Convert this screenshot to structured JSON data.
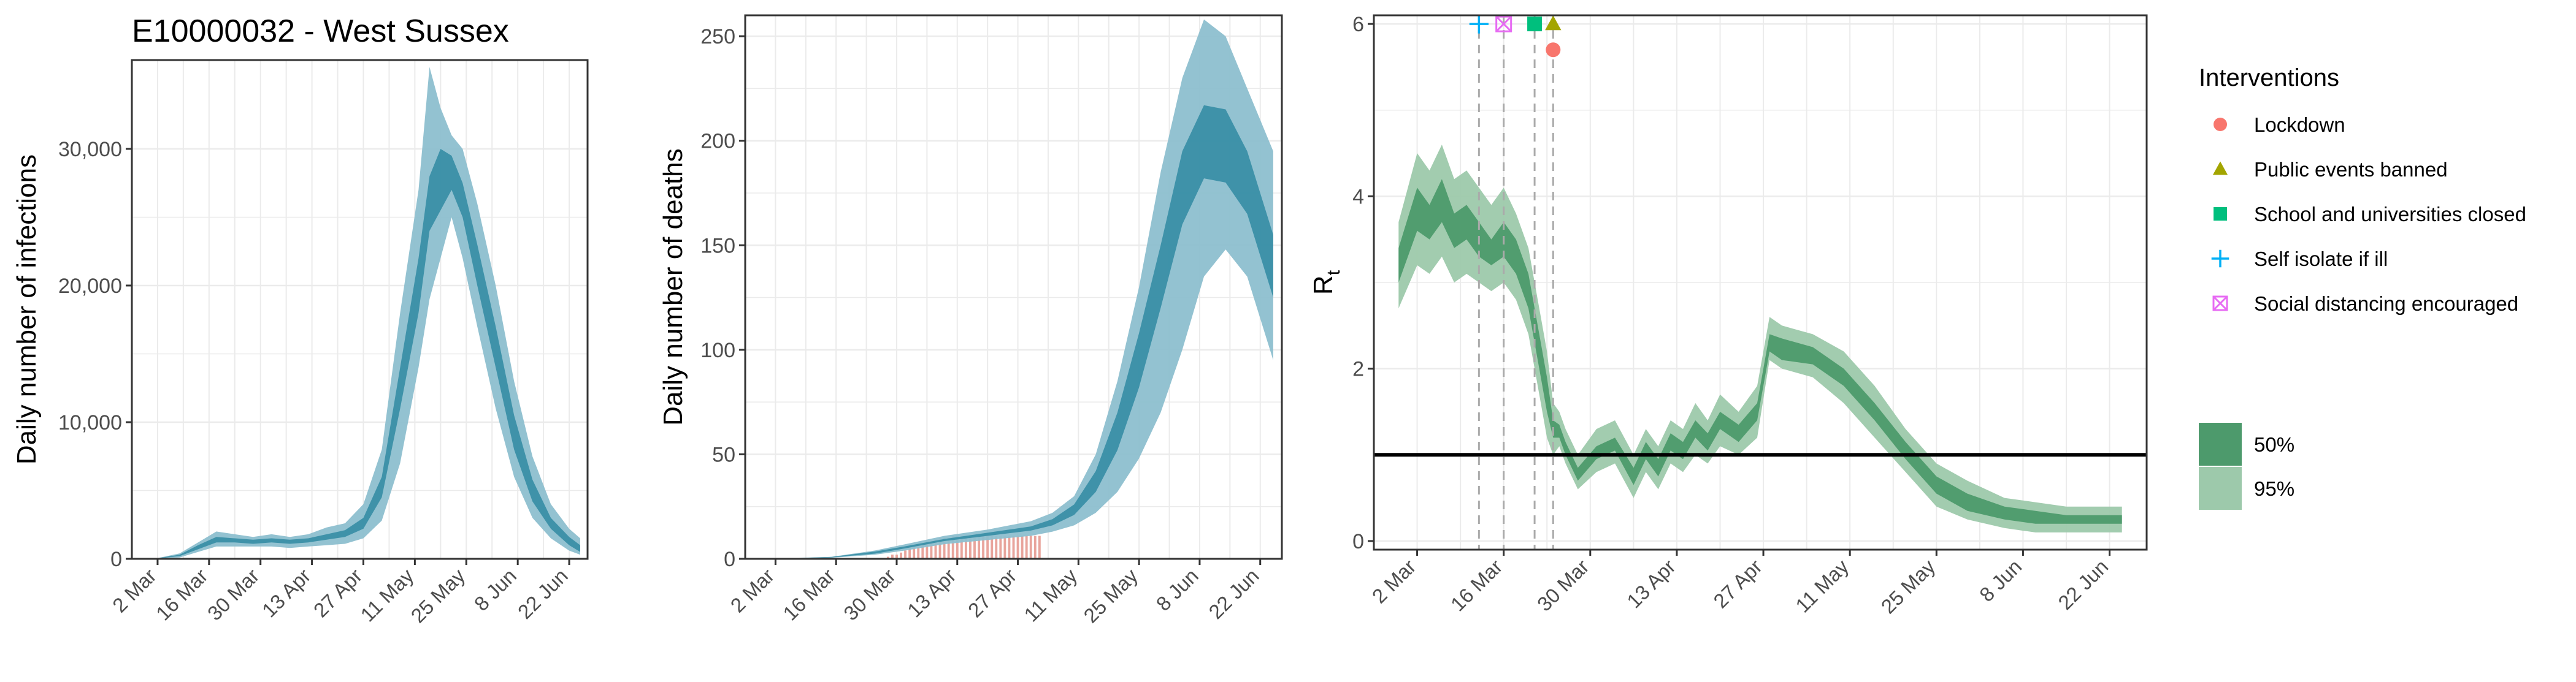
{
  "title": "E10000032 - West Sussex",
  "colors": {
    "infection_dark": "#3a8fa7",
    "infection_light": "#8dbfcf",
    "rt_dark": "#4d9a6c",
    "rt_light": "#9dc9ab",
    "bars": "#e8a49c",
    "grid": "#ebebeb",
    "lockdown": "#f8766d",
    "public_events": "#a3a500",
    "school": "#00bf7d",
    "self_isolate": "#00b0f6",
    "social_distancing": "#e76bf3"
  },
  "chart_data": [
    {
      "type": "area",
      "ylabel": "Daily number of infections",
      "ylim": [
        0,
        36500
      ],
      "xlim": [
        "2020-02-24",
        "2020-06-27"
      ],
      "x_ticks": [
        "2 Mar",
        "16 Mar",
        "30 Mar",
        "13 Apr",
        "27 Apr",
        "11 May",
        "25 May",
        "8 Jun",
        "22 Jun"
      ],
      "x_tick_dates": [
        "2020-03-02",
        "2020-03-16",
        "2020-03-30",
        "2020-04-13",
        "2020-04-27",
        "2020-05-11",
        "2020-05-25",
        "2020-06-08",
        "2020-06-22"
      ],
      "y_ticks": [
        0,
        10000,
        20000,
        30000
      ],
      "y_tick_labels": [
        "0",
        "10,000",
        "20,000",
        "30,000"
      ],
      "series": [
        {
          "band": "95%",
          "x": [
            "2020-03-01",
            "2020-03-08",
            "2020-03-13",
            "2020-03-18",
            "2020-03-23",
            "2020-03-28",
            "2020-04-02",
            "2020-04-07",
            "2020-04-12",
            "2020-04-17",
            "2020-04-22",
            "2020-04-27",
            "2020-05-02",
            "2020-05-07",
            "2020-05-12",
            "2020-05-15",
            "2020-05-18",
            "2020-05-21",
            "2020-05-24",
            "2020-05-28",
            "2020-06-02",
            "2020-06-07",
            "2020-06-12",
            "2020-06-17",
            "2020-06-22",
            "2020-06-25"
          ],
          "low": [
            0,
            100,
            500,
            900,
            900,
            900,
            900,
            800,
            900,
            1000,
            1100,
            1500,
            2800,
            7000,
            14000,
            19000,
            22000,
            25000,
            22000,
            17000,
            11000,
            6000,
            3000,
            1500,
            600,
            300
          ],
          "high": [
            0,
            400,
            1200,
            2000,
            1800,
            1600,
            1800,
            1600,
            1800,
            2300,
            2600,
            4000,
            8000,
            18000,
            27000,
            36000,
            33000,
            31000,
            30000,
            26000,
            20000,
            13000,
            7500,
            4000,
            2200,
            1500
          ]
        },
        {
          "band": "50%",
          "x": [
            "2020-03-01",
            "2020-03-08",
            "2020-03-13",
            "2020-03-18",
            "2020-03-23",
            "2020-03-28",
            "2020-04-02",
            "2020-04-07",
            "2020-04-12",
            "2020-04-17",
            "2020-04-22",
            "2020-04-27",
            "2020-05-02",
            "2020-05-07",
            "2020-05-12",
            "2020-05-15",
            "2020-05-18",
            "2020-05-21",
            "2020-05-24",
            "2020-05-28",
            "2020-06-02",
            "2020-06-07",
            "2020-06-12",
            "2020-06-17",
            "2020-06-22",
            "2020-06-25"
          ],
          "low": [
            0,
            200,
            700,
            1200,
            1200,
            1100,
            1200,
            1100,
            1200,
            1400,
            1600,
            2200,
            4500,
            11000,
            18000,
            24000,
            25500,
            27000,
            25000,
            20000,
            14000,
            8000,
            4200,
            2200,
            1000,
            500
          ],
          "high": [
            0,
            300,
            1000,
            1600,
            1500,
            1400,
            1500,
            1400,
            1500,
            1800,
            2100,
            3000,
            6000,
            14000,
            22000,
            28000,
            30000,
            29500,
            27500,
            23000,
            17000,
            10500,
            5800,
            3000,
            1600,
            1000
          ]
        }
      ]
    },
    {
      "type": "area",
      "ylabel": "Daily number of deaths",
      "ylim": [
        0,
        260
      ],
      "xlim": [
        "2020-02-24",
        "2020-06-27"
      ],
      "x_ticks": [
        "2 Mar",
        "16 Mar",
        "30 Mar",
        "13 Apr",
        "27 Apr",
        "11 May",
        "25 May",
        "8 Jun",
        "22 Jun"
      ],
      "x_tick_dates": [
        "2020-03-02",
        "2020-03-16",
        "2020-03-30",
        "2020-04-13",
        "2020-04-27",
        "2020-05-11",
        "2020-05-25",
        "2020-06-08",
        "2020-06-22"
      ],
      "y_ticks": [
        0,
        50,
        100,
        150,
        200,
        250
      ],
      "y_tick_labels": [
        "0",
        "50",
        "100",
        "150",
        "200",
        "250"
      ],
      "series": [
        {
          "band": "95%",
          "x": [
            "2020-03-01",
            "2020-03-15",
            "2020-03-25",
            "2020-04-01",
            "2020-04-10",
            "2020-04-20",
            "2020-04-30",
            "2020-05-05",
            "2020-05-10",
            "2020-05-15",
            "2020-05-20",
            "2020-05-25",
            "2020-05-30",
            "2020-06-04",
            "2020-06-09",
            "2020-06-14",
            "2020-06-19",
            "2020-06-25"
          ],
          "low": [
            0,
            0.5,
            2,
            4,
            7,
            9,
            11,
            13,
            16,
            22,
            32,
            48,
            70,
            100,
            135,
            148,
            135,
            95
          ],
          "high": [
            0,
            1,
            4,
            7,
            11,
            14,
            18,
            22,
            30,
            50,
            85,
            130,
            185,
            230,
            258,
            250,
            225,
            195
          ]
        },
        {
          "band": "50%",
          "x": [
            "2020-03-01",
            "2020-03-15",
            "2020-03-25",
            "2020-04-01",
            "2020-04-10",
            "2020-04-20",
            "2020-04-30",
            "2020-05-05",
            "2020-05-10",
            "2020-05-15",
            "2020-05-20",
            "2020-05-25",
            "2020-05-30",
            "2020-06-04",
            "2020-06-09",
            "2020-06-14",
            "2020-06-19",
            "2020-06-25"
          ],
          "low": [
            0,
            0.7,
            2.5,
            5,
            8.5,
            11,
            13.5,
            16,
            21,
            32,
            52,
            82,
            120,
            160,
            182,
            180,
            165,
            125
          ],
          "high": [
            0,
            0.9,
            3.5,
            6,
            9.5,
            12.5,
            15.5,
            19,
            26,
            42,
            70,
            108,
            150,
            195,
            217,
            215,
            195,
            155
          ]
        }
      ],
      "bars": {
        "x": [
          "2020-03-28",
          "2020-03-29",
          "2020-03-30",
          "2020-03-31",
          "2020-04-01",
          "2020-04-02",
          "2020-04-03",
          "2020-04-04",
          "2020-04-05",
          "2020-04-06",
          "2020-04-07",
          "2020-04-08",
          "2020-04-09",
          "2020-04-10",
          "2020-04-11",
          "2020-04-12",
          "2020-04-13",
          "2020-04-14",
          "2020-04-15",
          "2020-04-16",
          "2020-04-17",
          "2020-04-18",
          "2020-04-19",
          "2020-04-20",
          "2020-04-21",
          "2020-04-22",
          "2020-04-23",
          "2020-04-24",
          "2020-04-25",
          "2020-04-26",
          "2020-04-27",
          "2020-04-28",
          "2020-04-29",
          "2020-04-30",
          "2020-05-01",
          "2020-05-02"
        ],
        "values": [
          1,
          2,
          2,
          3,
          4,
          5,
          5,
          6,
          7,
          8,
          8,
          9,
          10,
          10,
          10,
          11,
          11,
          11,
          11,
          11,
          11,
          11,
          11,
          11,
          11,
          11,
          11,
          11,
          11,
          11,
          11,
          11,
          11,
          11,
          11,
          11
        ]
      }
    },
    {
      "type": "area",
      "ylabel": "R",
      "ylabel_sub": "t",
      "ylim": [
        -0.1,
        6.1
      ],
      "xlim": [
        "2020-02-24",
        "2020-06-28"
      ],
      "x_ticks": [
        "2 Mar",
        "16 Mar",
        "30 Mar",
        "13 Apr",
        "27 Apr",
        "11 May",
        "25 May",
        "8 Jun",
        "22 Jun"
      ],
      "x_tick_dates": [
        "2020-03-02",
        "2020-03-16",
        "2020-03-30",
        "2020-04-13",
        "2020-04-27",
        "2020-05-11",
        "2020-05-25",
        "2020-06-08",
        "2020-06-22"
      ],
      "y_ticks": [
        0,
        2,
        4,
        6
      ],
      "y_tick_labels": [
        "0",
        "2",
        "4",
        "6"
      ],
      "reference_line": 1,
      "series": [
        {
          "band": "95%",
          "x": [
            "2020-02-28",
            "2020-03-02",
            "2020-03-04",
            "2020-03-06",
            "2020-03-08",
            "2020-03-10",
            "2020-03-12",
            "2020-03-14",
            "2020-03-16",
            "2020-03-18",
            "2020-03-20",
            "2020-03-21",
            "2020-03-22",
            "2020-03-23",
            "2020-03-24",
            "2020-03-25",
            "2020-03-26",
            "2020-03-28",
            "2020-03-31",
            "2020-04-03",
            "2020-04-06",
            "2020-04-08",
            "2020-04-10",
            "2020-04-12",
            "2020-04-14",
            "2020-04-16",
            "2020-04-18",
            "2020-04-20",
            "2020-04-23",
            "2020-04-26",
            "2020-04-28",
            "2020-04-30",
            "2020-05-05",
            "2020-05-10",
            "2020-05-15",
            "2020-05-20",
            "2020-05-25",
            "2020-05-30",
            "2020-06-05",
            "2020-06-10",
            "2020-06-15",
            "2020-06-20",
            "2020-06-24"
          ],
          "low": [
            2.7,
            3.2,
            3.1,
            3.3,
            3.0,
            3.1,
            3.0,
            2.9,
            3.0,
            2.8,
            2.4,
            2.0,
            1.6,
            1.2,
            1.0,
            1.1,
            0.9,
            0.6,
            0.8,
            0.9,
            0.5,
            0.8,
            0.6,
            0.9,
            0.8,
            1.0,
            0.9,
            1.1,
            1.0,
            1.2,
            2.1,
            2.0,
            1.9,
            1.6,
            1.2,
            0.8,
            0.4,
            0.25,
            0.15,
            0.1,
            0.1,
            0.1,
            0.1
          ],
          "high": [
            3.7,
            4.5,
            4.3,
            4.6,
            4.2,
            4.3,
            4.1,
            3.9,
            4.1,
            3.8,
            3.4,
            3.0,
            2.6,
            2.2,
            1.6,
            1.5,
            1.3,
            1.0,
            1.3,
            1.4,
            1.0,
            1.3,
            1.1,
            1.4,
            1.3,
            1.6,
            1.4,
            1.7,
            1.5,
            1.8,
            2.6,
            2.5,
            2.4,
            2.2,
            1.8,
            1.3,
            0.9,
            0.7,
            0.5,
            0.45,
            0.4,
            0.4,
            0.4
          ]
        },
        {
          "band": "50%",
          "x": [
            "2020-02-28",
            "2020-03-02",
            "2020-03-04",
            "2020-03-06",
            "2020-03-08",
            "2020-03-10",
            "2020-03-12",
            "2020-03-14",
            "2020-03-16",
            "2020-03-18",
            "2020-03-20",
            "2020-03-21",
            "2020-03-22",
            "2020-03-23",
            "2020-03-24",
            "2020-03-25",
            "2020-03-26",
            "2020-03-28",
            "2020-03-31",
            "2020-04-03",
            "2020-04-06",
            "2020-04-08",
            "2020-04-10",
            "2020-04-12",
            "2020-04-14",
            "2020-04-16",
            "2020-04-18",
            "2020-04-20",
            "2020-04-23",
            "2020-04-26",
            "2020-04-28",
            "2020-04-30",
            "2020-05-05",
            "2020-05-10",
            "2020-05-15",
            "2020-05-20",
            "2020-05-25",
            "2020-05-30",
            "2020-06-05",
            "2020-06-10",
            "2020-06-15",
            "2020-06-20",
            "2020-06-24"
          ],
          "low": [
            3.0,
            3.6,
            3.5,
            3.7,
            3.4,
            3.5,
            3.3,
            3.2,
            3.3,
            3.1,
            2.7,
            2.3,
            1.9,
            1.5,
            1.2,
            1.2,
            1.0,
            0.7,
            0.95,
            1.05,
            0.65,
            0.95,
            0.75,
            1.05,
            0.95,
            1.2,
            1.05,
            1.3,
            1.15,
            1.4,
            2.2,
            2.1,
            2.05,
            1.8,
            1.4,
            0.95,
            0.55,
            0.35,
            0.25,
            0.2,
            0.2,
            0.2,
            0.2
          ],
          "high": [
            3.4,
            4.1,
            3.9,
            4.2,
            3.8,
            3.9,
            3.7,
            3.5,
            3.7,
            3.5,
            3.1,
            2.7,
            2.3,
            1.9,
            1.4,
            1.35,
            1.15,
            0.85,
            1.1,
            1.2,
            0.85,
            1.15,
            0.95,
            1.25,
            1.15,
            1.4,
            1.25,
            1.5,
            1.35,
            1.6,
            2.4,
            2.35,
            2.25,
            2.0,
            1.6,
            1.15,
            0.75,
            0.55,
            0.4,
            0.35,
            0.3,
            0.3,
            0.3
          ]
        }
      ],
      "interventions": [
        {
          "name": "Self isolate if ill",
          "date": "2020-03-12",
          "shape": "plus",
          "y": 6,
          "color_key": "self_isolate"
        },
        {
          "name": "Social distancing encouraged",
          "date": "2020-03-16",
          "shape": "boxx",
          "y": 6,
          "color_key": "social_distancing"
        },
        {
          "name": "School and universities closed",
          "date": "2020-03-21",
          "shape": "square",
          "y": 6,
          "color_key": "school"
        },
        {
          "name": "Public events banned",
          "date": "2020-03-24",
          "shape": "triangle",
          "y": 6,
          "color_key": "public_events"
        },
        {
          "name": "Lockdown",
          "date": "2020-03-24",
          "shape": "circle",
          "y": 5.7,
          "color_key": "lockdown"
        }
      ]
    }
  ],
  "legend": {
    "title": "Interventions",
    "items": [
      {
        "label": "Lockdown",
        "shape": "circle",
        "color_key": "lockdown"
      },
      {
        "label": "Public events banned",
        "shape": "triangle",
        "color_key": "public_events"
      },
      {
        "label": "School and universities closed",
        "shape": "square",
        "color_key": "school"
      },
      {
        "label": "Self isolate if ill",
        "shape": "plus",
        "color_key": "self_isolate"
      },
      {
        "label": "Social distancing encouraged",
        "shape": "boxx",
        "color_key": "social_distancing"
      }
    ],
    "bands": [
      {
        "label": "50%",
        "color_key": "rt_dark"
      },
      {
        "label": "95%",
        "color_key": "rt_light"
      }
    ]
  }
}
